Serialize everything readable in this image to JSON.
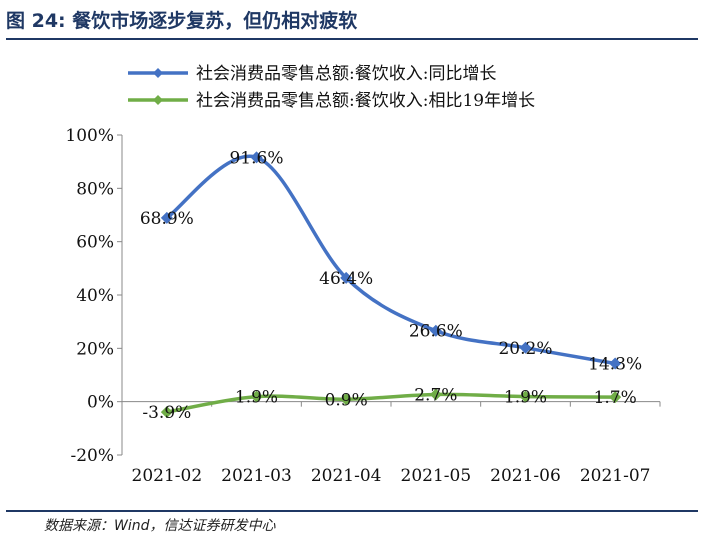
{
  "title": "图 24: 餐饮市场逐步复苏，但仍相对疲软",
  "source": "数据来源：Wind，信达证券研发中心",
  "chart_data": {
    "type": "line",
    "categories": [
      "2021-02",
      "2021-03",
      "2021-04",
      "2021-05",
      "2021-06",
      "2021-07"
    ],
    "series": [
      {
        "name": "社会消费品零售总额:餐饮收入:同比增长",
        "values": [
          68.9,
          91.6,
          46.4,
          26.6,
          20.2,
          14.3
        ],
        "labels": [
          "68.9%",
          "91.6%",
          "46.4%",
          "26.6%",
          "20.2%",
          "14.3%"
        ],
        "color": "#4472c4"
      },
      {
        "name": "社会消费品零售总额:餐饮收入:相比19年增长",
        "values": [
          -3.9,
          1.9,
          0.9,
          2.7,
          1.9,
          1.7
        ],
        "labels": [
          "-3.9%",
          "1.9%",
          "0.9%",
          "2.7%",
          "1.9%",
          "1.7%"
        ],
        "color": "#70ad47"
      }
    ],
    "yticks": [
      "100%",
      "80%",
      "60%",
      "40%",
      "20%",
      "0%",
      "-20%"
    ],
    "ylim": [
      -20,
      100
    ],
    "grid": false,
    "legend": "top"
  }
}
